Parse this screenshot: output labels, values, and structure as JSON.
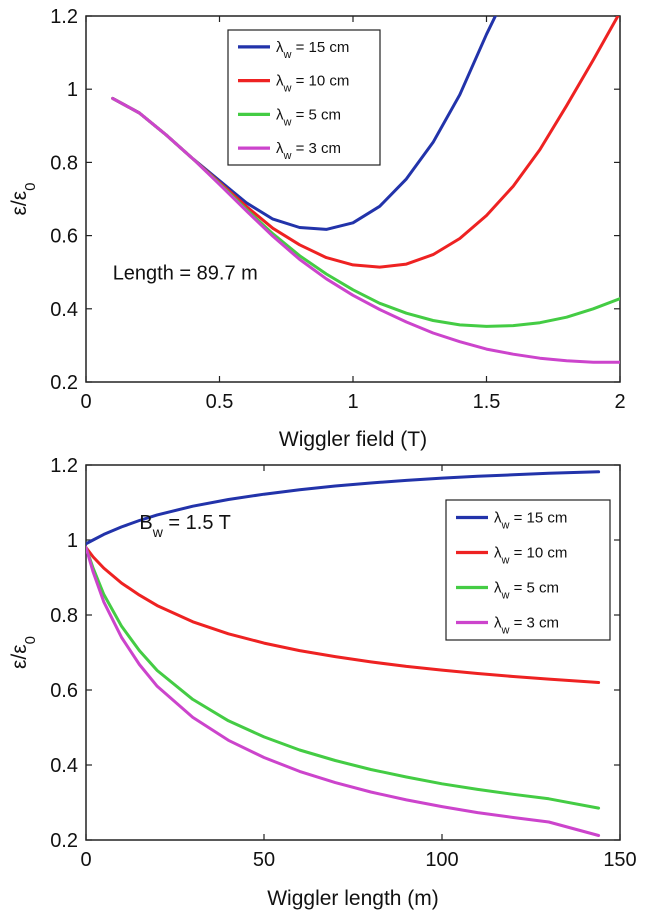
{
  "chart_data": [
    {
      "type": "line",
      "xlabel": "Wiggler field (T)",
      "ylabel": "ε/ε",
      "ylabel_sub": "0",
      "xlim": [
        0,
        2
      ],
      "ylim": [
        0.2,
        1.2
      ],
      "xticks": [
        0,
        0.5,
        1,
        1.5,
        2
      ],
      "xtick_labels": [
        "0",
        "0.5",
        "1",
        "1.5",
        "2"
      ],
      "yticks": [
        0.2,
        0.4,
        0.6,
        0.8,
        1.0,
        1.2
      ],
      "ytick_labels": [
        "0.2",
        "0.4",
        "0.6",
        "0.8",
        "1",
        "1.2"
      ],
      "annotation": {
        "text": "Length = 89.7 m",
        "x": 0.1,
        "y": 0.48
      },
      "legend": "top-center",
      "series": [
        {
          "name_main": "λ",
          "name_sub": "w",
          "name_rest": " = 15 cm",
          "color": "#2233aa",
          "x": [
            0.1,
            0.2,
            0.3,
            0.4,
            0.5,
            0.6,
            0.7,
            0.8,
            0.9,
            1.0,
            1.1,
            1.2,
            1.3,
            1.4,
            1.5,
            1.6
          ],
          "y": [
            0.975,
            0.935,
            0.875,
            0.81,
            0.75,
            0.69,
            0.645,
            0.622,
            0.617,
            0.635,
            0.68,
            0.755,
            0.855,
            0.985,
            1.15,
            1.3
          ]
        },
        {
          "name_main": "λ",
          "name_sub": "w",
          "name_rest": " = 10 cm",
          "color": "#ee2222",
          "x": [
            0.1,
            0.2,
            0.3,
            0.4,
            0.5,
            0.6,
            0.7,
            0.8,
            0.9,
            1.0,
            1.1,
            1.2,
            1.3,
            1.4,
            1.5,
            1.6,
            1.7,
            1.8,
            1.9,
            2.0
          ],
          "y": [
            0.975,
            0.935,
            0.875,
            0.81,
            0.745,
            0.68,
            0.62,
            0.575,
            0.54,
            0.52,
            0.514,
            0.522,
            0.548,
            0.592,
            0.655,
            0.735,
            0.835,
            0.955,
            1.08,
            1.21
          ]
        },
        {
          "name_main": "λ",
          "name_sub": "w",
          "name_rest": " = 5 cm",
          "color": "#44cc44",
          "x": [
            0.1,
            0.2,
            0.3,
            0.4,
            0.5,
            0.6,
            0.7,
            0.8,
            0.9,
            1.0,
            1.1,
            1.2,
            1.3,
            1.4,
            1.5,
            1.6,
            1.7,
            1.8,
            1.9,
            2.0
          ],
          "y": [
            0.975,
            0.935,
            0.875,
            0.81,
            0.742,
            0.672,
            0.605,
            0.545,
            0.495,
            0.452,
            0.415,
            0.388,
            0.368,
            0.356,
            0.352,
            0.354,
            0.362,
            0.377,
            0.4,
            0.428
          ]
        },
        {
          "name_main": "λ",
          "name_sub": "w",
          "name_rest": " = 3 cm",
          "color": "#cc44cc",
          "x": [
            0.1,
            0.2,
            0.3,
            0.4,
            0.5,
            0.6,
            0.7,
            0.8,
            0.9,
            1.0,
            1.1,
            1.2,
            1.3,
            1.4,
            1.5,
            1.6,
            1.7,
            1.8,
            1.9,
            2.0
          ],
          "y": [
            0.975,
            0.935,
            0.875,
            0.81,
            0.74,
            0.668,
            0.598,
            0.535,
            0.482,
            0.437,
            0.398,
            0.364,
            0.334,
            0.31,
            0.29,
            0.276,
            0.265,
            0.258,
            0.254,
            0.254
          ]
        }
      ]
    },
    {
      "type": "line",
      "xlabel": "Wiggler length (m)",
      "ylabel": "ε/ε",
      "ylabel_sub": "0",
      "xlim": [
        0,
        150
      ],
      "ylim": [
        0.2,
        1.2
      ],
      "xticks": [
        0,
        50,
        100,
        150
      ],
      "xtick_labels": [
        "0",
        "50",
        "100",
        "150"
      ],
      "yticks": [
        0.2,
        0.4,
        0.6,
        0.8,
        1.0,
        1.2
      ],
      "ytick_labels": [
        "0.2",
        "0.4",
        "0.6",
        "0.8",
        "1",
        "1.2"
      ],
      "annotation": {
        "text_main": "B",
        "text_sub": "w",
        "text_rest": " = 1.5 T",
        "x": 15,
        "y": 1.03
      },
      "legend": "top-right",
      "series": [
        {
          "name_main": "λ",
          "name_sub": "w",
          "name_rest": " = 15 cm",
          "color": "#2233aa",
          "x": [
            0,
            2,
            5,
            10,
            15,
            20,
            30,
            40,
            50,
            60,
            70,
            80,
            90,
            100,
            110,
            120,
            130,
            144
          ],
          "y": [
            0.99,
            1.0,
            1.015,
            1.035,
            1.052,
            1.067,
            1.09,
            1.108,
            1.122,
            1.134,
            1.144,
            1.152,
            1.159,
            1.165,
            1.17,
            1.174,
            1.178,
            1.182
          ]
        },
        {
          "name_main": "λ",
          "name_sub": "w",
          "name_rest": " = 10 cm",
          "color": "#ee2222",
          "x": [
            0,
            2,
            5,
            10,
            15,
            20,
            30,
            40,
            50,
            60,
            70,
            80,
            90,
            100,
            110,
            120,
            130,
            144
          ],
          "y": [
            0.98,
            0.955,
            0.925,
            0.885,
            0.853,
            0.825,
            0.782,
            0.75,
            0.725,
            0.705,
            0.689,
            0.675,
            0.663,
            0.653,
            0.644,
            0.636,
            0.629,
            0.62
          ]
        },
        {
          "name_main": "λ",
          "name_sub": "w",
          "name_rest": " = 5 cm",
          "color": "#44cc44",
          "x": [
            0,
            2,
            5,
            10,
            15,
            20,
            30,
            40,
            50,
            60,
            70,
            80,
            90,
            100,
            110,
            120,
            130,
            144
          ],
          "y": [
            0.98,
            0.925,
            0.855,
            0.77,
            0.705,
            0.652,
            0.575,
            0.518,
            0.475,
            0.44,
            0.412,
            0.388,
            0.368,
            0.35,
            0.335,
            0.322,
            0.31,
            0.285
          ]
        },
        {
          "name_main": "λ",
          "name_sub": "w",
          "name_rest": " = 3 cm",
          "color": "#cc44cc",
          "x": [
            0,
            2,
            5,
            10,
            15,
            20,
            30,
            40,
            50,
            60,
            70,
            80,
            90,
            100,
            110,
            120,
            130,
            144
          ],
          "y": [
            0.98,
            0.915,
            0.835,
            0.74,
            0.668,
            0.61,
            0.527,
            0.466,
            0.42,
            0.383,
            0.353,
            0.328,
            0.307,
            0.289,
            0.273,
            0.26,
            0.248,
            0.212
          ]
        }
      ]
    }
  ]
}
